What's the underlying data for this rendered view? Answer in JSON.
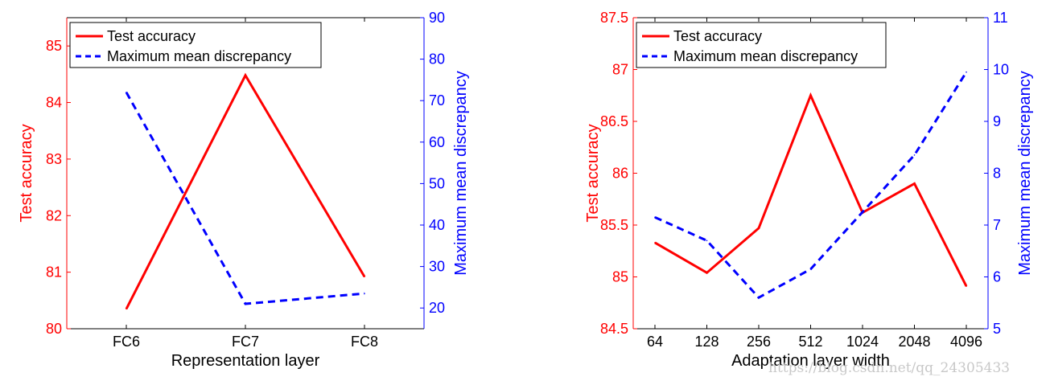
{
  "chart_data": [
    {
      "type": "line",
      "categories": [
        "FC6",
        "FC7",
        "FC8"
      ],
      "xlabel": "Representation layer",
      "left_axis": {
        "label": "Test accuracy",
        "range": [
          80,
          85.5
        ],
        "ticks": [
          "80",
          "81",
          "82",
          "83",
          "84",
          "85"
        ],
        "color": "#ff0000"
      },
      "right_axis": {
        "label": "Maximum mean discrepancy",
        "range": [
          15,
          90
        ],
        "ticks": [
          "20",
          "30",
          "40",
          "50",
          "60",
          "70",
          "80",
          "90"
        ],
        "color": "#0000ff"
      },
      "series": [
        {
          "name": "Test accuracy",
          "axis": "left",
          "values": [
            80.35,
            84.48,
            80.92
          ],
          "color": "#ff0000",
          "style": "solid"
        },
        {
          "name": "Maximum mean discrepancy",
          "axis": "right",
          "values": [
            72,
            21,
            23.5
          ],
          "color": "#0000ff",
          "style": "dashed"
        }
      ],
      "legend": "top-left",
      "grid": false
    },
    {
      "type": "line",
      "categories": [
        "64",
        "128",
        "256",
        "512",
        "1024",
        "2048",
        "4096"
      ],
      "xlabel": "Adaptation layer width",
      "left_axis": {
        "label": "Test accuracy",
        "range": [
          84.5,
          87.5
        ],
        "ticks": [
          "84.5",
          "85",
          "85.5",
          "86",
          "86.5",
          "87",
          "87.5"
        ],
        "color": "#ff0000"
      },
      "right_axis": {
        "label": "Maximum mean discrepancy",
        "range": [
          5,
          11
        ],
        "ticks": [
          "5",
          "6",
          "7",
          "8",
          "9",
          "10",
          "11"
        ],
        "color": "#0000ff"
      },
      "series": [
        {
          "name": "Test accuracy",
          "axis": "left",
          "values": [
            85.33,
            85.04,
            85.47,
            86.75,
            85.62,
            85.9,
            84.91
          ],
          "color": "#ff0000",
          "style": "solid"
        },
        {
          "name": "Maximum mean discrepancy",
          "axis": "right",
          "values": [
            7.15,
            6.7,
            5.6,
            6.15,
            7.25,
            8.35,
            9.95
          ],
          "color": "#0000ff",
          "style": "dashed"
        }
      ],
      "legend": "top-left",
      "grid": false
    }
  ],
  "watermark": "https://blog.csdn.net/qq_24305433"
}
